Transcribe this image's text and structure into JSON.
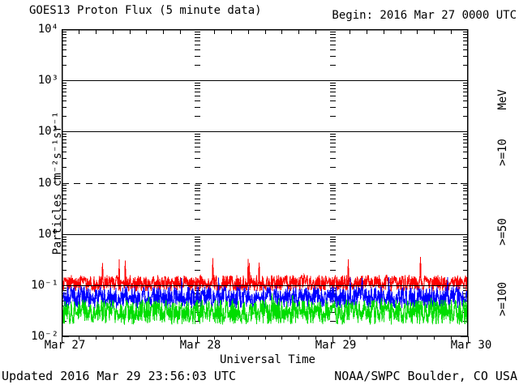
{
  "header": {
    "title": "GOES13 Proton Flux (5 minute data)",
    "begin_label": "Begin: 2016 Mar 27 0000 UTC"
  },
  "footer": {
    "updated": "Updated 2016 Mar 29 23:56:03 UTC",
    "source": "NOAA/SWPC Boulder, CO USA"
  },
  "chart_data": {
    "type": "line",
    "title": "GOES13 Proton Flux (5 minute data)",
    "xlabel": "Universal Time",
    "ylabel": "Particles cm⁻²s⁻¹sr⁻¹",
    "x_start": "2016 Mar 27 0000 UTC",
    "x_end": "2016 Mar 30 0000 UTC",
    "cadence_minutes": 5,
    "x_tick_labels": [
      "Mar 27",
      "Mar 28",
      "Mar 29",
      "Mar 30"
    ],
    "y_scale": "log",
    "ylim": [
      0.01,
      10000
    ],
    "y_tick_labels": [
      "10⁴",
      "10³",
      "10²",
      "10¹",
      "10⁰",
      "10⁻¹",
      "10⁻²"
    ],
    "y_tick_exponents": [
      4,
      3,
      2,
      1,
      0,
      -1,
      -2
    ],
    "hlines": [
      {
        "value": 1000,
        "style": "solid"
      },
      {
        "value": 100,
        "style": "solid"
      },
      {
        "value": 10,
        "style": "dashed"
      },
      {
        "value": 1,
        "style": "solid"
      },
      {
        "value": 0.1,
        "style": "solid_over_data"
      }
    ],
    "legend_title": "MeV",
    "series": [
      {
        "name": ">=10",
        "unit": "MeV",
        "color": "#FF0000",
        "approx_range": [
          0.076,
          0.158
        ],
        "typical": 0.11,
        "spike_max": 0.38,
        "spike_prob": 0.012
      },
      {
        "name": ">=50",
        "unit": "MeV",
        "color": "#0000FF",
        "approx_range": [
          0.035,
          0.095
        ],
        "typical": 0.06,
        "spike_max": 0.15,
        "spike_prob": 0.009
      },
      {
        "name": ">=100",
        "unit": "MeV",
        "color": "#00DD00",
        "approx_range": [
          0.017,
          0.052
        ],
        "typical": 0.03,
        "spike_max": 0.07,
        "spike_prob": 0.009
      }
    ],
    "noise_seed": 20160329
  }
}
